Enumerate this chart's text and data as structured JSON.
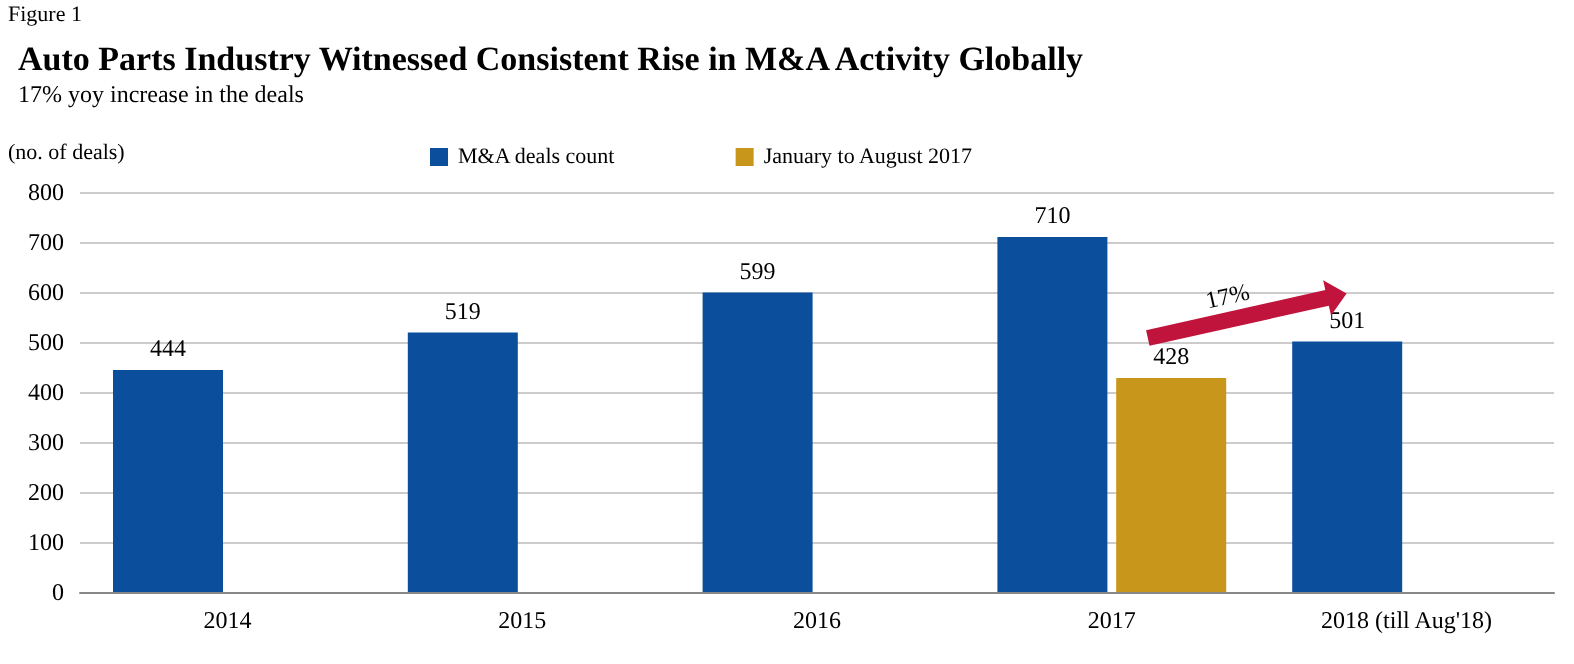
{
  "chart_data": {
    "type": "bar",
    "title": "Auto Parts Industry Witnessed Consistent Rise in M&A Activity Globally",
    "subtitle": "17% yoy increase in the deals",
    "ylabel": "(no. of deals)",
    "annotations": [
      "Figure 1",
      "17%"
    ],
    "categories": [
      "2014",
      "2015",
      "2016",
      "2017",
      "2018 (till Aug'18)"
    ],
    "series": [
      {
        "name": "M&A deals count",
        "color": "#0b4f9c",
        "values": [
          444,
          519,
          599,
          710,
          501
        ]
      },
      {
        "name": "January to August 2017",
        "color": "#c8961a",
        "values": [
          null,
          null,
          null,
          428,
          null
        ]
      }
    ],
    "ylim": [
      0,
      800
    ],
    "yticks": [
      0,
      100,
      200,
      300,
      400,
      500,
      600,
      700,
      800
    ],
    "grid": "y",
    "legend": "top",
    "data_labels": true
  }
}
